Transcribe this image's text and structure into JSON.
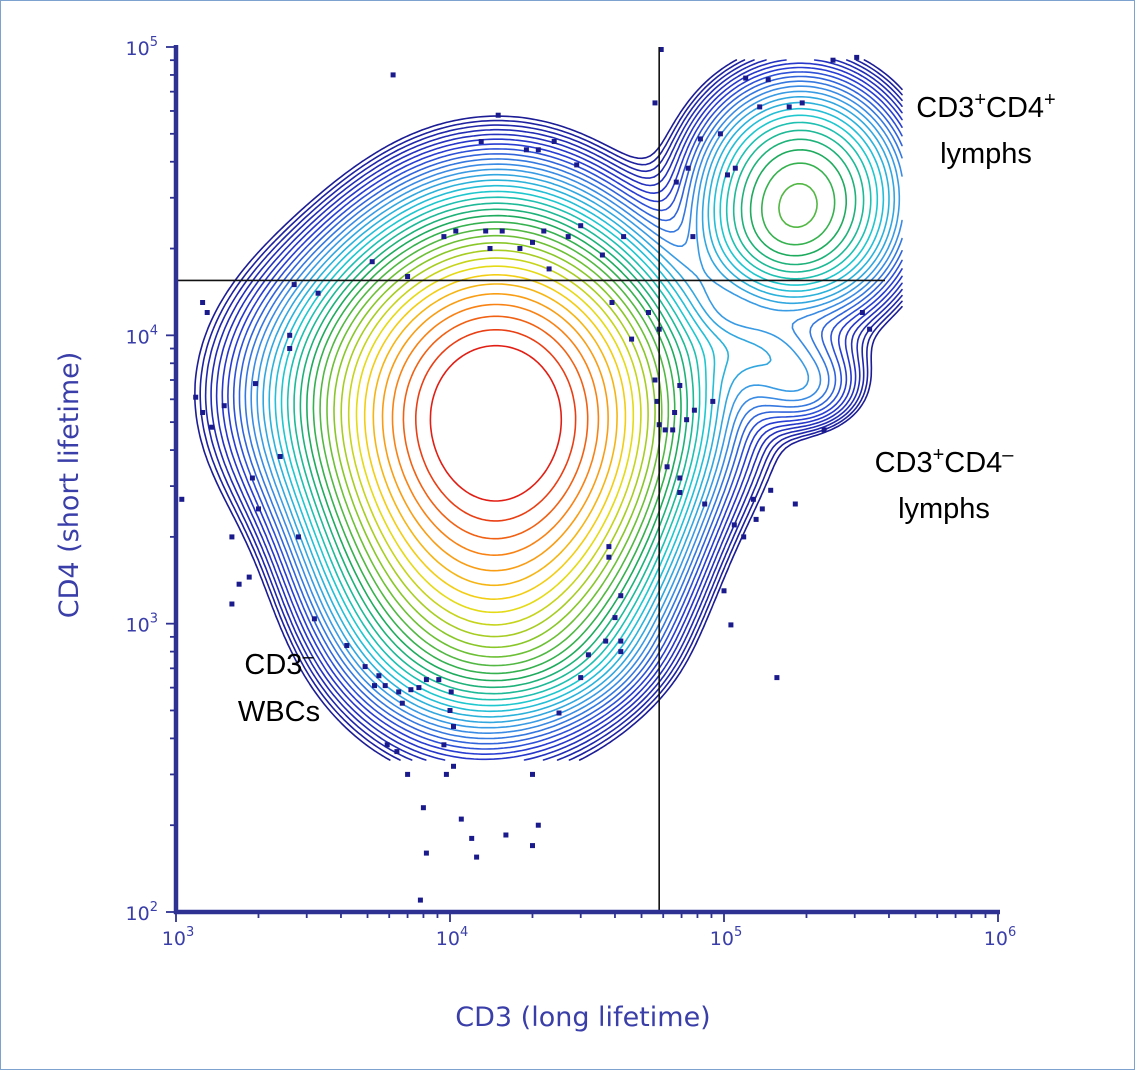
{
  "chart_data": {
    "type": "contour",
    "xlabel": "CD3 (long lifetime)",
    "ylabel": "CD4 (short lifetime)",
    "x_scale": "log",
    "y_scale": "log",
    "xlim": [
      1000,
      1000000
    ],
    "ylim": [
      100,
      100000
    ],
    "x_ticks": [
      {
        "value": 1000,
        "base": "10",
        "exp": "3"
      },
      {
        "value": 10000,
        "base": "10",
        "exp": "4"
      },
      {
        "value": 100000,
        "base": "10",
        "exp": "5"
      },
      {
        "value": 1000000,
        "base": "10",
        "exp": "6"
      }
    ],
    "y_ticks": [
      {
        "value": 100,
        "base": "10",
        "exp": "2"
      },
      {
        "value": 1000,
        "base": "10",
        "exp": "3"
      },
      {
        "value": 10000,
        "base": "10",
        "exp": "4"
      },
      {
        "value": 100000,
        "base": "10",
        "exp": "5"
      }
    ],
    "gates": {
      "x_threshold": 58000,
      "y_threshold": 15500
    },
    "populations": [
      {
        "name": "CD3- WBCs",
        "center": [
          15000,
          5000
        ],
        "peak": "high"
      },
      {
        "name": "CD3+CD4+ lymphs",
        "center": [
          190000,
          30000
        ],
        "peak": "medium"
      },
      {
        "name": "CD3+CD4- lymphs",
        "center": [
          170000,
          7500
        ],
        "peak": "low"
      }
    ],
    "annotations": [
      {
        "id": "cd4pos",
        "line1": {
          "base": "CD3",
          "sup1": "+",
          "mid": "CD4",
          "sup2": "+"
        },
        "line2": "lymphs"
      },
      {
        "id": "cd4neg",
        "line1": {
          "base": "CD3",
          "sup1": "+",
          "mid": "CD4",
          "sup2": "–"
        },
        "line2": "lymphs"
      },
      {
        "id": "cd3neg",
        "line1": {
          "base": "CD3",
          "sup1": "–",
          "mid": "",
          "sup2": ""
        },
        "line2": "WBCs"
      }
    ],
    "scatter": [
      [
        6200,
        80000
      ],
      [
        9500,
        22000
      ],
      [
        13000,
        47000
      ],
      [
        15000,
        58000
      ],
      [
        19000,
        44000
      ],
      [
        21000,
        44000
      ],
      [
        24000,
        47000
      ],
      [
        29000,
        39000
      ],
      [
        30000,
        24000
      ],
      [
        27000,
        22000
      ],
      [
        23000,
        17000
      ],
      [
        20000,
        21000
      ],
      [
        18000,
        20000
      ],
      [
        14000,
        20000
      ],
      [
        13500,
        23000
      ],
      [
        10500,
        23000
      ],
      [
        15500,
        23000
      ],
      [
        22000,
        23000
      ],
      [
        36000,
        19000
      ],
      [
        43000,
        22000
      ],
      [
        56000,
        64000
      ],
      [
        59000,
        98000
      ],
      [
        82000,
        48000
      ],
      [
        97000,
        50000
      ],
      [
        110000,
        38000
      ],
      [
        120000,
        78000
      ],
      [
        145000,
        77000
      ],
      [
        135000,
        62000
      ],
      [
        173000,
        62000
      ],
      [
        193000,
        64000
      ],
      [
        250000,
        90000
      ],
      [
        305000,
        92000
      ],
      [
        74000,
        38000
      ],
      [
        67000,
        34000
      ],
      [
        77000,
        22000
      ],
      [
        103000,
        36000
      ],
      [
        5200,
        18000
      ],
      [
        7000,
        16000
      ],
      [
        3300,
        14000
      ],
      [
        2700,
        15000
      ],
      [
        1300,
        12000
      ],
      [
        1250,
        13000
      ],
      [
        2600,
        10000
      ],
      [
        2600,
        9000
      ],
      [
        1180,
        6100
      ],
      [
        1250,
        5400
      ],
      [
        1350,
        4800
      ],
      [
        1500,
        5700
      ],
      [
        1950,
        6800
      ],
      [
        1900,
        3200
      ],
      [
        2400,
        3800
      ],
      [
        1050,
        2700
      ],
      [
        2000,
        2500
      ],
      [
        1600,
        2000
      ],
      [
        2800,
        2000
      ],
      [
        1850,
        1450
      ],
      [
        1700,
        1370
      ],
      [
        1600,
        1170
      ],
      [
        3200,
        1040
      ],
      [
        4200,
        840
      ],
      [
        4900,
        710
      ],
      [
        5500,
        660
      ],
      [
        5300,
        610
      ],
      [
        5800,
        610
      ],
      [
        6500,
        580
      ],
      [
        6700,
        530
      ],
      [
        7200,
        590
      ],
      [
        7700,
        600
      ],
      [
        8200,
        640
      ],
      [
        9100,
        640
      ],
      [
        10100,
        580
      ],
      [
        10000,
        500
      ],
      [
        10300,
        440
      ],
      [
        9500,
        380
      ],
      [
        5900,
        380
      ],
      [
        6400,
        360
      ],
      [
        7000,
        300
      ],
      [
        9700,
        300
      ],
      [
        10300,
        320
      ],
      [
        20000,
        300
      ],
      [
        8000,
        230
      ],
      [
        11000,
        210
      ],
      [
        12000,
        180
      ],
      [
        16000,
        185
      ],
      [
        20000,
        170
      ],
      [
        21000,
        200
      ],
      [
        12500,
        155
      ],
      [
        8200,
        160
      ],
      [
        7800,
        110
      ],
      [
        25000,
        490
      ],
      [
        38000,
        1850
      ],
      [
        38000,
        1700
      ],
      [
        40000,
        1050
      ],
      [
        42000,
        1250
      ],
      [
        37000,
        870
      ],
      [
        42000,
        800
      ],
      [
        32000,
        780
      ],
      [
        42000,
        870
      ],
      [
        30000,
        650
      ],
      [
        39000,
        13000
      ],
      [
        46000,
        9700
      ],
      [
        53000,
        12000
      ],
      [
        56000,
        7000
      ],
      [
        58000,
        10500
      ],
      [
        57000,
        5900
      ],
      [
        58000,
        4900
      ],
      [
        61000,
        4700
      ],
      [
        62000,
        3500
      ],
      [
        69000,
        6700
      ],
      [
        66000,
        5400
      ],
      [
        73000,
        5100
      ],
      [
        69000,
        3200
      ],
      [
        69000,
        2850
      ],
      [
        85000,
        2600
      ],
      [
        91000,
        5900
      ],
      [
        78000,
        5500
      ],
      [
        100000,
        1300
      ],
      [
        106000,
        990
      ],
      [
        109000,
        2200
      ],
      [
        118000,
        2000
      ],
      [
        128000,
        2700
      ],
      [
        131000,
        2300
      ],
      [
        138000,
        2500
      ],
      [
        148000,
        2900
      ],
      [
        182000,
        2600
      ],
      [
        156000,
        650
      ],
      [
        232000,
        4700
      ],
      [
        320000,
        12000
      ],
      [
        340000,
        10500
      ],
      [
        65000,
        4700
      ]
    ],
    "colors": {
      "axis": "#2e3192",
      "gate": "#111111",
      "dot": "#1a1a8c",
      "label": "#3a3ea8"
    }
  }
}
